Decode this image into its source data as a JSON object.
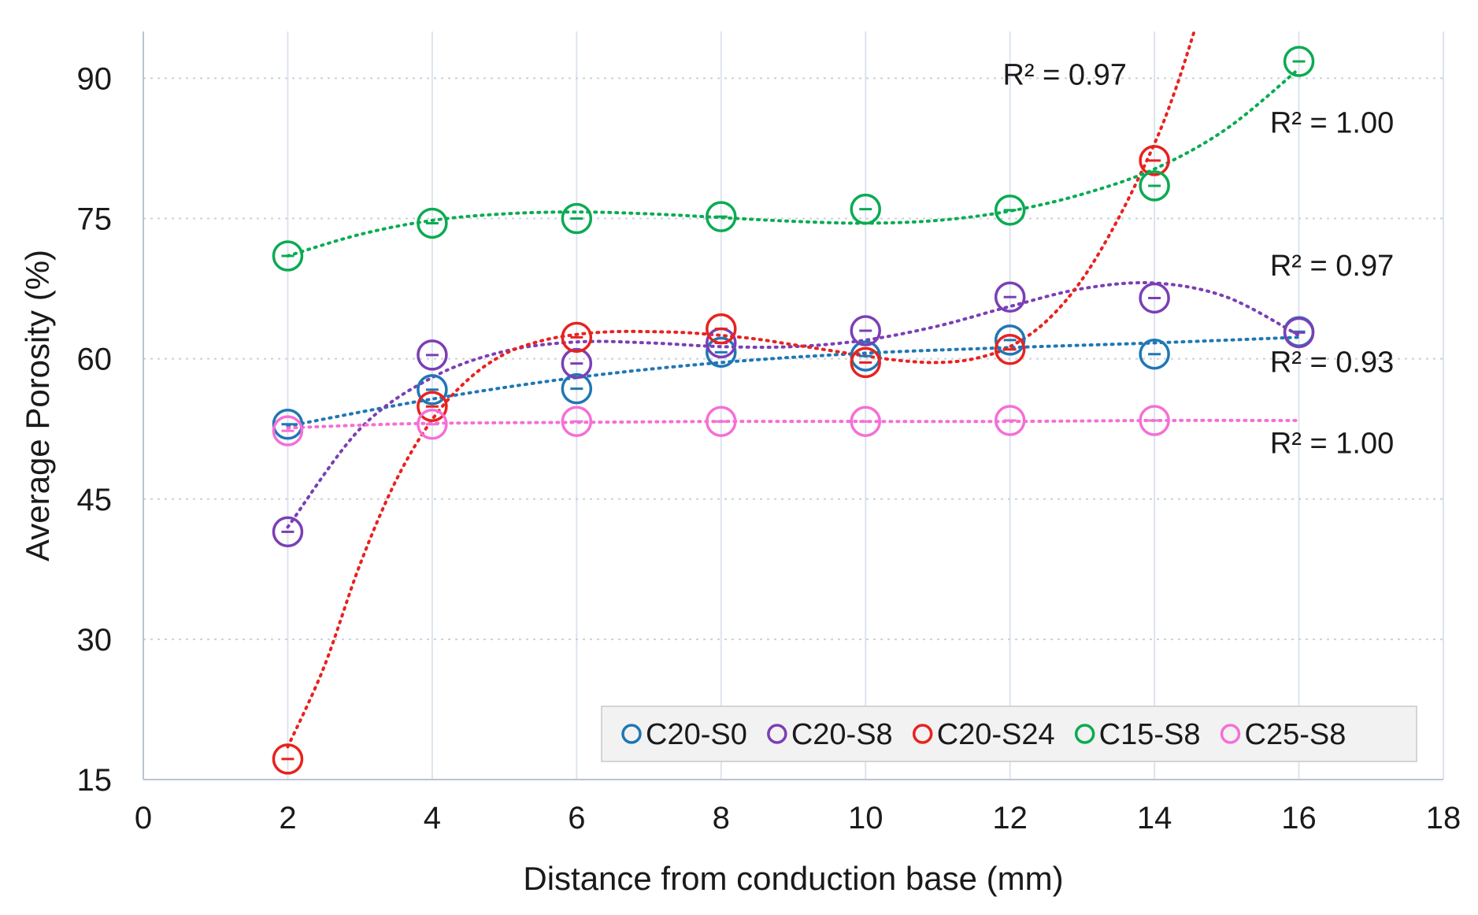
{
  "chart_data": {
    "type": "scatter",
    "xlabel": "Distance from conduction base (mm)",
    "ylabel": "Average Porosity (%)",
    "xlim": [
      0,
      18
    ],
    "ylim": [
      15,
      95
    ],
    "x_ticks": [
      0,
      2,
      4,
      6,
      8,
      10,
      12,
      14,
      16,
      18
    ],
    "y_ticks": [
      15,
      30,
      45,
      60,
      75,
      90
    ],
    "grid": "on",
    "legend_position": "bottom-right",
    "trendlines": "polynomial, dotted",
    "series": [
      {
        "name": "C20-S0",
        "color": "#1f77b4",
        "x": [
          2,
          4,
          6,
          8,
          10,
          12,
          14,
          16
        ],
        "y": [
          53.0,
          56.7,
          56.8,
          60.7,
          60.3,
          62.0,
          60.5,
          62.9
        ],
        "fit": [
          [
            2,
            52.8
          ],
          [
            4,
            55.7
          ],
          [
            6,
            58.0
          ],
          [
            8,
            59.6
          ],
          [
            10,
            60.6
          ],
          [
            12,
            61.2
          ],
          [
            14,
            61.7
          ],
          [
            16,
            62.3
          ]
        ]
      },
      {
        "name": "C20-S8",
        "color": "#7b3fb5",
        "x": [
          2,
          4,
          6,
          8,
          10,
          12,
          14,
          16
        ],
        "y": [
          41.5,
          60.4,
          59.5,
          61.7,
          63.0,
          66.6,
          66.5,
          62.8
        ],
        "fit": [
          [
            2,
            42.0
          ],
          [
            3,
            52.5
          ],
          [
            4,
            58.0
          ],
          [
            5,
            60.8
          ],
          [
            6,
            61.8
          ],
          [
            7,
            61.7
          ],
          [
            8,
            61.3
          ],
          [
            9,
            61.3
          ],
          [
            10,
            62.0
          ],
          [
            11,
            63.5
          ],
          [
            12,
            65.6
          ],
          [
            13,
            67.5
          ],
          [
            14,
            68.1
          ],
          [
            15,
            66.6
          ],
          [
            16,
            62.5
          ]
        ]
      },
      {
        "name": "C20-S24",
        "color": "#e8221e",
        "x": [
          2,
          4,
          6,
          8,
          10,
          12,
          14
        ],
        "y": [
          17.2,
          54.9,
          62.3,
          63.2,
          59.6,
          61.0,
          81.2
        ],
        "fit": [
          [
            2,
            18.5
          ],
          [
            2.5,
            27.0
          ],
          [
            3,
            38.0
          ],
          [
            3.5,
            47.0
          ],
          [
            4,
            53.5
          ],
          [
            4.5,
            57.8
          ],
          [
            5,
            60.5
          ],
          [
            5.5,
            61.9
          ],
          [
            6,
            62.6
          ],
          [
            6.5,
            62.9
          ],
          [
            7,
            62.9
          ],
          [
            7.5,
            62.8
          ],
          [
            8,
            62.5
          ],
          [
            8.5,
            62.1
          ],
          [
            9,
            61.5
          ],
          [
            9.5,
            60.9
          ],
          [
            10,
            60.3
          ],
          [
            10.5,
            59.8
          ],
          [
            11,
            59.6
          ],
          [
            11.5,
            60.0
          ],
          [
            12,
            61.3
          ],
          [
            12.5,
            64.0
          ],
          [
            13,
            68.5
          ],
          [
            13.5,
            75.0
          ],
          [
            14,
            83.0
          ],
          [
            14.3,
            89.0
          ],
          [
            14.55,
            95.0
          ]
        ]
      },
      {
        "name": "C15-S8",
        "color": "#0aab52",
        "x": [
          2,
          4,
          6,
          8,
          10,
          12,
          14,
          16
        ],
        "y": [
          71.0,
          74.5,
          75.0,
          75.2,
          76.0,
          75.9,
          78.5,
          91.8
        ],
        "fit": [
          [
            2,
            71.0
          ],
          [
            3,
            73.3
          ],
          [
            4,
            74.8
          ],
          [
            5,
            75.5
          ],
          [
            6,
            75.7
          ],
          [
            7,
            75.5
          ],
          [
            8,
            75.1
          ],
          [
            9,
            74.7
          ],
          [
            10,
            74.5
          ],
          [
            11,
            74.8
          ],
          [
            12,
            75.8
          ],
          [
            13,
            77.6
          ],
          [
            14,
            80.3
          ],
          [
            15,
            84.6
          ],
          [
            16,
            91.0
          ]
        ]
      },
      {
        "name": "C25-S8",
        "color": "#f56fd6",
        "x": [
          2,
          4,
          6,
          8,
          10,
          12,
          14
        ],
        "y": [
          52.3,
          53.0,
          53.3,
          53.3,
          53.3,
          53.4,
          53.4
        ],
        "fit": [
          [
            2,
            52.6
          ],
          [
            3,
            52.9
          ],
          [
            4,
            53.1
          ],
          [
            6,
            53.2
          ],
          [
            8,
            53.3
          ],
          [
            10,
            53.3
          ],
          [
            12,
            53.3
          ],
          [
            14,
            53.4
          ],
          [
            16,
            53.4
          ]
        ]
      }
    ],
    "annotations": [
      {
        "text": "R² = 0.97",
        "x": 11.9,
        "y": 89.3
      },
      {
        "text": "R² = 1.00",
        "x": 15.6,
        "y": 84.2
      },
      {
        "text": "R² = 0.97",
        "x": 15.6,
        "y": 68.9
      },
      {
        "text": "R² = 0.93",
        "x": 15.6,
        "y": 58.6
      },
      {
        "text": "R² = 1.00",
        "x": 15.6,
        "y": 49.9
      }
    ]
  }
}
